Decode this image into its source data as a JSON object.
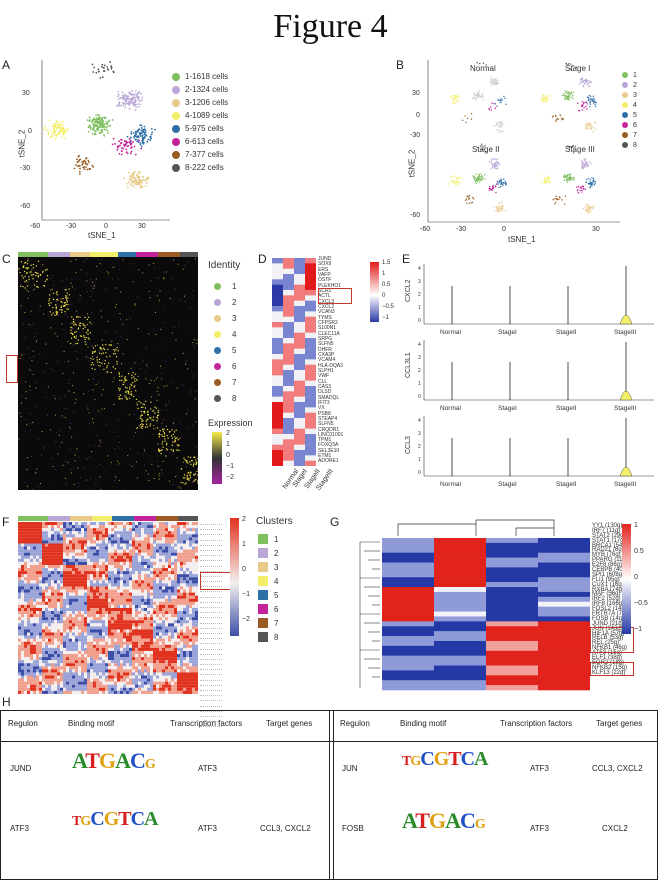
{
  "figure_title": "Figure 4",
  "panels": {
    "A": {
      "label": "A",
      "xlabel": "tSNE_1",
      "ylabel": "tSNE_2",
      "xticks": [
        "-60",
        "-30",
        "0",
        "30"
      ],
      "yticks": [
        "30",
        "0",
        "-30",
        "-60"
      ],
      "legend": [
        {
          "label": "1-1618 cells",
          "color": "#7fbf5f"
        },
        {
          "label": "2-1324 cells",
          "color": "#b9a6d6"
        },
        {
          "label": "3-1206 cells",
          "color": "#e8c98a"
        },
        {
          "label": "4-1089 cells",
          "color": "#f3ee6a"
        },
        {
          "label": "5-975 cells",
          "color": "#2f6fa8"
        },
        {
          "label": "6-613 cells",
          "color": "#c4239b"
        },
        {
          "label": "7-377 cells",
          "color": "#9a5c22"
        },
        {
          "label": "8-222 cells",
          "color": "#555555"
        }
      ]
    },
    "B": {
      "label": "B",
      "facets": [
        "Normal",
        "Stage I",
        "Stage II",
        "Stage III"
      ],
      "xlabel": "tSNE_1",
      "ylabel": "tSNE_2",
      "xticks": [
        "-60",
        "-30",
        "0",
        "30"
      ],
      "yticks": [
        "30",
        "0",
        "-30",
        "-60"
      ],
      "legend": [
        "1",
        "2",
        "3",
        "4",
        "5",
        "6",
        "7",
        "8"
      ]
    },
    "C": {
      "label": "C",
      "identity_title": "Identity",
      "identity_items": [
        "1",
        "2",
        "3",
        "4",
        "5",
        "6",
        "7",
        "8"
      ],
      "expression_title": "Expression",
      "expression_ticks": [
        "2",
        "1",
        "0",
        "−1",
        "−2"
      ]
    },
    "D": {
      "label": "D",
      "genes": [
        "JUND",
        "SOX9",
        "ERS",
        "VAFP",
        "OSTF",
        "PLEKHO1",
        "SCR1",
        "ACTL",
        "CXCL3",
        "CXCL2",
        "VCAN3",
        "TYMS",
        "CFPSR2",
        "S100N1",
        "CLEC11A",
        "SRPG",
        "SLFN5",
        "DHFR",
        "CXA3P",
        "VCAM4",
        "HLA-DQA3",
        "SLPH1",
        "VWF",
        "CLL",
        "CAS3",
        "DLSD",
        "SMADQL",
        "IFIT3",
        "VX",
        "PSB8",
        "STEAP4",
        "SLFN5",
        "CRQDR1",
        "LINC01001",
        "TPM1",
        "FOXQ3A",
        "SEL3E10",
        "ETM1",
        "ADORE1"
      ],
      "columns": [
        "Normal",
        "StageI",
        "StageII",
        "StageIII"
      ],
      "scale_ticks": [
        "1.5",
        "1",
        "0.5",
        "0",
        "−0.5",
        "−1"
      ]
    },
    "E": {
      "label": "E",
      "violins": [
        {
          "ylabel": "CXCL2",
          "yticks": [
            "4",
            "3",
            "2",
            "1",
            "0"
          ]
        },
        {
          "ylabel": "CCL3L1",
          "yticks": [
            "4",
            "3",
            "2",
            "1",
            "0"
          ]
        },
        {
          "ylabel": "CCL3",
          "yticks": [
            "4",
            "3",
            "2",
            "1",
            "0"
          ]
        }
      ],
      "groups": [
        "Normal",
        "StageI",
        "StageII",
        "StageIII"
      ]
    },
    "F": {
      "label": "F",
      "clusters_title": "Clusters",
      "cluster_items": [
        "1",
        "2",
        "3",
        "4",
        "5",
        "6",
        "7",
        "8"
      ],
      "scale_ticks": [
        "2",
        "1",
        "0",
        "−1",
        "−2"
      ]
    },
    "G": {
      "label": "G",
      "tfs": [
        "YY1 (130g)",
        "IRF7 (11g)",
        "STAT2 (29g)",
        "STAT1 (17g)",
        "BRCA1 (54g)",
        "RAD21 (8g)",
        "MYB (76g)",
        "PPARG (11g)",
        "E2F8 (86g)",
        "CEBPB (40g)",
        "SPI1 (608g)",
        "FLI1 (95g)",
        "CUX1 (16g)",
        "RXRA (74g)",
        "MAF (56g)",
        "IRF2 (52g)",
        "IRF8 (166g)",
        "FOSL2 (14g)",
        "FRTR7A (7g)",
        "FOSB (14g)",
        "JUND (21g)",
        "JUN (143g)",
        "HIF1A (57g)",
        "RELB (53g)",
        "REL (25g)",
        "NFKB1 (46g)",
        "ATF3 (15g)",
        "ELF1 (38g)",
        "EGR2 (18g)",
        "NFKB2 (15g)",
        "KLF13 (22g)"
      ],
      "scale_ticks": [
        "1",
        "0.5",
        "0",
        "−0.5",
        "−1"
      ]
    }
  },
  "panel_H": {
    "label": "H",
    "headers_left": [
      "Regulon",
      "Binding motif",
      "Transcription factors",
      "Target genes"
    ],
    "headers_right": [
      "Regulon",
      "Binding motif",
      "Transcription factors",
      "Target genes"
    ],
    "rows_left": [
      {
        "regulon": "JUND",
        "motif": "ATGACG",
        "tf": "ATF3",
        "targets": ""
      },
      {
        "regulon": "ATF3",
        "motif": "TGCGTCA",
        "tf": "ATF3",
        "targets": "CCL3, CXCL2"
      }
    ],
    "rows_right": [
      {
        "regulon": "JUN",
        "motif": "TGCGTCA",
        "tf": "ATF3",
        "targets": "CCL3, CXCL2"
      },
      {
        "regulon": "FOSB",
        "motif": "ATGACG",
        "tf": "ATF3",
        "targets": "CXCL2"
      }
    ]
  }
}
